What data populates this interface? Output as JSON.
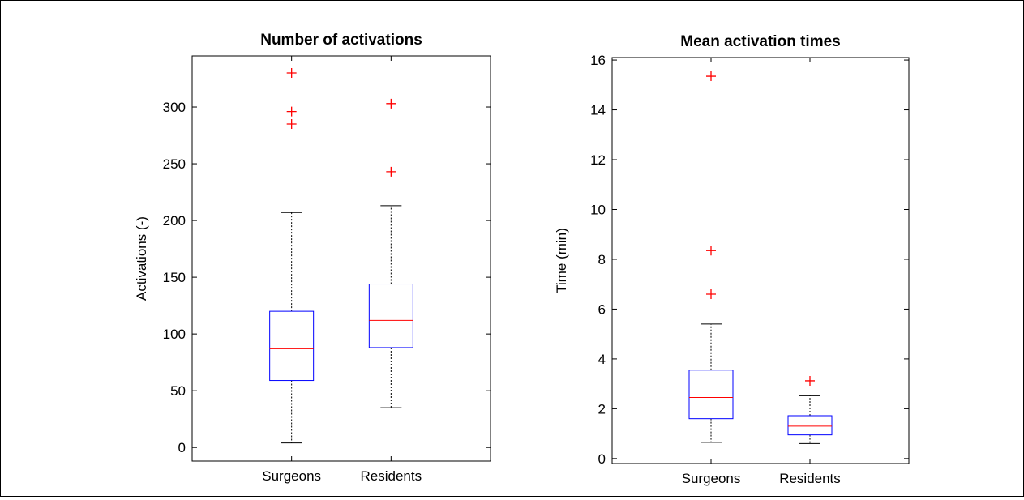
{
  "chart_data": [
    {
      "type": "box",
      "title": "Number of activations",
      "xlabel": "",
      "ylabel": "Activations (-)",
      "ylim": [
        -12,
        345
      ],
      "yticks": [
        0,
        50,
        100,
        150,
        200,
        250,
        300
      ],
      "grid": false,
      "categories": [
        "Surgeons",
        "Residents"
      ],
      "boxes": [
        {
          "category": "Surgeons",
          "whisker_low": 4,
          "q1": 59,
          "median": 87,
          "q3": 120,
          "whisker_high": 207,
          "outliers": [
            285,
            296,
            330
          ]
        },
        {
          "category": "Residents",
          "whisker_low": 35,
          "q1": 88,
          "median": 112,
          "q3": 144,
          "whisker_high": 213,
          "outliers": [
            243,
            303
          ]
        }
      ]
    },
    {
      "type": "box",
      "title": "Mean activation times",
      "xlabel": "",
      "ylabel": "Time (min)",
      "ylim": [
        -0.2,
        16.1
      ],
      "yticks": [
        0,
        2,
        4,
        6,
        8,
        10,
        12,
        14,
        16
      ],
      "grid": false,
      "categories": [
        "Surgeons",
        "Residents"
      ],
      "boxes": [
        {
          "category": "Surgeons",
          "whisker_low": 0.65,
          "q1": 1.6,
          "median": 2.45,
          "q3": 3.55,
          "whisker_high": 5.4,
          "outliers": [
            6.6,
            8.35,
            15.35
          ]
        },
        {
          "category": "Residents",
          "whisker_low": 0.6,
          "q1": 0.95,
          "median": 1.3,
          "q3": 1.72,
          "whisker_high": 2.52,
          "outliers": [
            3.12
          ]
        }
      ]
    }
  ],
  "colors": {
    "box": "#0000ff",
    "median": "#ff0000",
    "outlier": "#ff0000",
    "whisker": "#000000"
  }
}
